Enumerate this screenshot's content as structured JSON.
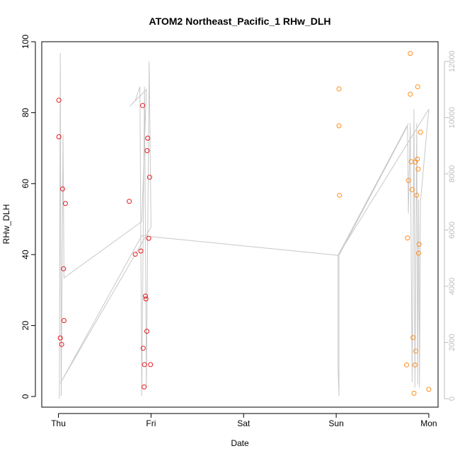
{
  "chart_data": {
    "type": "scatter",
    "title": "ATOM2 Northeast_Pacific_1 RHw_DLH",
    "xlabel": "Date",
    "ylabel": "RHw_DLH",
    "x_unit": "days since Thu 00:00",
    "xlim": [
      -0.18,
      4.1
    ],
    "ylim": [
      -3,
      100
    ],
    "y2lim": [
      -300,
      12700
    ],
    "x_ticks": [
      {
        "value": 0,
        "label": "Thu"
      },
      {
        "value": 1,
        "label": "Fri"
      },
      {
        "value": 2,
        "label": "Sat"
      },
      {
        "value": 3,
        "label": "Sun"
      },
      {
        "value": 4,
        "label": "Mon"
      }
    ],
    "y_ticks": [
      0,
      20,
      40,
      60,
      80,
      100
    ],
    "y2_ticks": [
      0,
      2000,
      4000,
      6000,
      8000,
      10000,
      12000
    ],
    "colors": {
      "series_red": "#e41a1c",
      "series_orange": "#ff8c1a",
      "altitude_line": "#c8c8c8",
      "axis": "#000000",
      "right_axis": "#bdbdbd"
    },
    "series": [
      {
        "color": "#e41a1c",
        "points": [
          [
            0.005,
            83.5
          ],
          [
            0.005,
            73.2
          ],
          [
            0.02,
            16.5
          ],
          [
            0.035,
            14.7
          ],
          [
            0.045,
            58.5
          ],
          [
            0.055,
            36.0
          ],
          [
            0.06,
            21.4
          ],
          [
            0.075,
            54.4
          ],
          [
            0.765,
            55.0
          ],
          [
            0.83,
            40.1
          ],
          [
            0.89,
            41.0
          ],
          [
            0.91,
            82.0
          ],
          [
            0.915,
            13.6
          ],
          [
            0.925,
            2.7
          ],
          [
            0.93,
            9.0
          ],
          [
            0.94,
            28.3
          ],
          [
            0.945,
            27.5
          ],
          [
            0.955,
            18.4
          ],
          [
            0.958,
            69.3
          ],
          [
            0.965,
            72.8
          ],
          [
            0.975,
            44.6
          ],
          [
            0.985,
            61.8
          ],
          [
            0.995,
            9.0
          ]
        ]
      },
      {
        "color": "#ff8c1a",
        "points": [
          [
            3.03,
            86.7
          ],
          [
            3.03,
            76.3
          ],
          [
            3.035,
            56.7
          ],
          [
            3.76,
            8.9
          ],
          [
            3.77,
            44.7
          ],
          [
            3.78,
            60.9
          ],
          [
            3.8,
            96.7
          ],
          [
            3.8,
            85.2
          ],
          [
            3.81,
            66.2
          ],
          [
            3.82,
            58.3
          ],
          [
            3.83,
            16.6
          ],
          [
            3.84,
            0.9
          ],
          [
            3.85,
            8.9
          ],
          [
            3.855,
            66.1
          ],
          [
            3.86,
            12.8
          ],
          [
            3.87,
            56.7
          ],
          [
            3.875,
            66.9
          ],
          [
            3.88,
            87.3
          ],
          [
            3.885,
            64.1
          ],
          [
            3.89,
            40.4
          ],
          [
            3.895,
            42.9
          ],
          [
            3.91,
            74.5
          ],
          [
            4.0,
            2.0
          ]
        ]
      }
    ],
    "altitude_track": {
      "axis": "right",
      "points": [
        [
          0.01,
          0
        ],
        [
          0.02,
          12300
        ],
        [
          0.03,
          100
        ],
        [
          0.05,
          9400
        ],
        [
          0.06,
          4300
        ],
        [
          0.06,
          4300
        ],
        [
          0.9,
          6300
        ],
        [
          0.95,
          11000
        ],
        [
          0.77,
          10400
        ],
        [
          0.83,
          10600
        ],
        [
          0.88,
          11100
        ],
        [
          0.9,
          100
        ],
        [
          0.93,
          11100
        ],
        [
          0.95,
          400
        ],
        [
          0.98,
          12000
        ],
        [
          1.0,
          6100
        ],
        [
          0.02,
          550
        ],
        [
          0.9,
          5800
        ],
        [
          3.02,
          5100
        ],
        [
          3.02,
          1100
        ],
        [
          3.03,
          100
        ],
        [
          3.03,
          5100
        ],
        [
          3.77,
          9700
        ],
        [
          3.78,
          6600
        ],
        [
          3.8,
          9800
        ],
        [
          3.82,
          600
        ],
        [
          3.84,
          10300
        ],
        [
          3.85,
          400
        ],
        [
          3.87,
          9800
        ],
        [
          3.88,
          500
        ],
        [
          3.89,
          7100
        ],
        [
          3.9,
          400
        ],
        [
          3.91,
          7000
        ],
        [
          4.0,
          10300
        ],
        [
          3.02,
          5100
        ],
        [
          3.78,
          9800
        ]
      ]
    }
  }
}
